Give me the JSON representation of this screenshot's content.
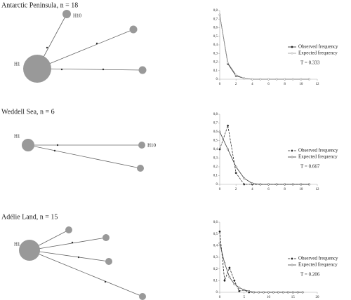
{
  "networks": [
    {
      "title": "Antarctic Peninsula, n = 18",
      "labels": [
        "H1",
        "H10"
      ]
    },
    {
      "title": "Weddell Sea, n = 6",
      "labels": [
        "H1",
        "H10"
      ]
    },
    {
      "title": "Adélie Land, n = 15",
      "labels": [
        "H1"
      ]
    }
  ],
  "chart_data": [
    {
      "type": "line",
      "x": [
        0,
        1,
        2,
        3,
        4,
        5,
        6,
        7,
        8,
        9,
        10,
        11
      ],
      "series": [
        {
          "name": "Observed frequency",
          "color": "#222222",
          "dashed": false,
          "values": [
            0.75,
            0.18,
            0.04,
            0.01,
            0,
            0,
            0,
            0,
            0,
            0,
            0,
            0
          ]
        },
        {
          "name": "Expected frequency",
          "color": "#999999",
          "dashed": false,
          "values": [
            0.75,
            0.19,
            0.05,
            0.01,
            0,
            0,
            0,
            0,
            0,
            0,
            0,
            0
          ]
        }
      ],
      "annotation": "T = 0.333",
      "xlim": [
        0,
        12
      ],
      "xticks": [
        0,
        2,
        4,
        6,
        8,
        10,
        12
      ],
      "ylim": [
        0,
        0.8
      ],
      "yticks": [
        0,
        {
          "value": 0.1,
          "label": "0,1"
        },
        {
          "value": 0.2,
          "label": "0,2"
        },
        {
          "value": 0.3,
          "label": "0,3"
        },
        {
          "value": 0.4,
          "label": "0,4"
        },
        {
          "value": 0.5,
          "label": "0,5"
        },
        {
          "value": 0.6,
          "label": "0,6"
        },
        {
          "value": 0.7,
          "label": "0,7"
        },
        {
          "value": 0.8,
          "label": "0,8"
        }
      ]
    },
    {
      "type": "line",
      "x": [
        0,
        1,
        2,
        3,
        4,
        5,
        6,
        7,
        8,
        9,
        10,
        11
      ],
      "series": [
        {
          "name": "Observed frequency",
          "color": "#333333",
          "dashed": true,
          "values": [
            0.4,
            0.67,
            0.13,
            0,
            0,
            0,
            0,
            0,
            0,
            0,
            0,
            0
          ]
        },
        {
          "name": "Expected frequency",
          "color": "#333333",
          "dashed": false,
          "values": [
            0.6,
            0.4,
            0.2,
            0.07,
            0.01,
            0,
            0,
            0,
            0,
            0,
            0,
            0
          ]
        }
      ],
      "annotation": "T = 0.667",
      "xlim": [
        0,
        12
      ],
      "xticks": [
        0,
        2,
        4,
        6,
        8,
        10,
        12
      ],
      "ylim": [
        0,
        0.8
      ],
      "yticks": [
        0,
        {
          "value": 0.1,
          "label": "0,1"
        },
        {
          "value": 0.2,
          "label": "0,2"
        },
        {
          "value": 0.3,
          "label": "0,3"
        },
        {
          "value": 0.4,
          "label": "0,4"
        },
        {
          "value": 0.5,
          "label": "0,5"
        },
        {
          "value": 0.6,
          "label": "0,6"
        },
        {
          "value": 0.7,
          "label": "0,7"
        },
        {
          "value": 0.8,
          "label": "0,8"
        }
      ]
    },
    {
      "type": "line",
      "x": [
        0,
        1,
        2,
        3,
        4,
        5,
        6,
        7,
        8,
        9,
        10,
        11,
        12,
        13,
        14,
        15,
        16,
        17
      ],
      "series": [
        {
          "name": "Observed frequency",
          "color": "#222222",
          "dashed": true,
          "values": [
            0.52,
            0.1,
            0.21,
            0.1,
            0.01,
            0.02,
            0,
            0,
            0,
            0,
            0,
            0,
            0,
            0,
            0,
            0,
            0,
            0
          ]
        },
        {
          "name": "Expected frequency",
          "color": "#444444",
          "dashed": false,
          "values": [
            0.42,
            0.25,
            0.13,
            0.07,
            0.04,
            0.02,
            0.01,
            0,
            0,
            0,
            0,
            0,
            0,
            0,
            0,
            0,
            0,
            0
          ]
        }
      ],
      "annotation": "T = 0.206",
      "xlim": [
        0,
        20
      ],
      "xticks": [
        0,
        5,
        10,
        15,
        20
      ],
      "ylim": [
        0,
        0.6
      ],
      "yticks": [
        0,
        {
          "value": 0.1,
          "label": "0,1"
        },
        {
          "value": 0.2,
          "label": "0,2"
        },
        {
          "value": 0.3,
          "label": "0,3"
        },
        {
          "value": 0.4,
          "label": "0,4"
        },
        {
          "value": 0.5,
          "label": "0,5"
        },
        {
          "value": 0.6,
          "label": "0,6"
        }
      ]
    }
  ]
}
